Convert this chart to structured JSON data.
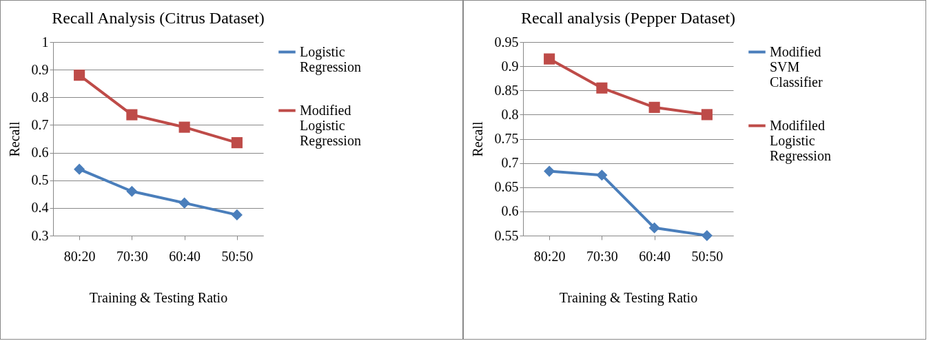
{
  "chart_data": [
    {
      "type": "line",
      "title": "Recall Analysis (Citrus Dataset)",
      "xlabel": "Training & Testing Ratio",
      "ylabel": "Recall",
      "categories": [
        "80:20",
        "70:30",
        "60:40",
        "50:50"
      ],
      "series": [
        {
          "name": "Logistic Regression",
          "color": "#4a7ebb",
          "marker": "diamond",
          "values": [
            0.54,
            0.46,
            0.418,
            0.375
          ]
        },
        {
          "name": "Modified Logistic Regression",
          "color": "#be4b48",
          "marker": "square",
          "values": [
            0.88,
            0.737,
            0.692,
            0.636
          ]
        }
      ],
      "ylim": [
        0.3,
        1
      ],
      "yticks": [
        0.3,
        0.4,
        0.5,
        0.6,
        0.7,
        0.8,
        0.9,
        1
      ],
      "grid": "y",
      "legend": "right"
    },
    {
      "type": "line",
      "title": "Recall analysis (Pepper Dataset)",
      "xlabel": "Training & Testing Ratio",
      "ylabel": "Recall",
      "categories": [
        "80:20",
        "70:30",
        "60:40",
        "50:50"
      ],
      "series": [
        {
          "name": "Modified SVM Classifier",
          "color": "#4a7ebb",
          "marker": "diamond",
          "values": [
            0.683,
            0.675,
            0.566,
            0.55
          ]
        },
        {
          "name": "Modifiled Logistic Regression",
          "color": "#be4b48",
          "marker": "square",
          "values": [
            0.915,
            0.855,
            0.815,
            0.8
          ]
        }
      ],
      "ylim": [
        0.55,
        0.95
      ],
      "yticks": [
        0.55,
        0.6,
        0.65,
        0.7,
        0.75,
        0.8,
        0.85,
        0.9,
        0.95
      ],
      "grid": "y",
      "legend": "right"
    }
  ]
}
